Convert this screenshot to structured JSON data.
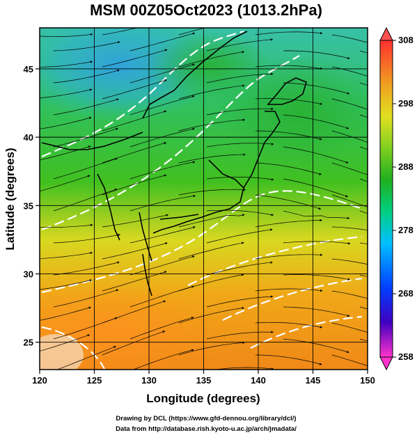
{
  "title": "MSM 00Z05Oct2023 (1013.2hPa)",
  "x_axis": {
    "label": "Longitude (degrees)",
    "ticks": [
      120,
      125,
      130,
      135,
      140,
      145,
      150
    ],
    "range": [
      120,
      150
    ]
  },
  "y_axis": {
    "label": "Latitude  (degrees)",
    "ticks": [
      25,
      30,
      35,
      40,
      45
    ],
    "range": [
      23,
      48
    ]
  },
  "colorbar": {
    "ticks": [
      308,
      298,
      288,
      278,
      268,
      258
    ],
    "range": [
      258,
      308
    ],
    "colors": [
      "#ff33cc",
      "#4000c0",
      "#0040ff",
      "#00c0ff",
      "#00d080",
      "#20b020",
      "#80d020",
      "#e0e020",
      "#f0a020",
      "#ff3030"
    ]
  },
  "credits": {
    "line1": "Drawing by DCL (https://www.gfd-dennou.org/library/dcl/)",
    "line2": "Data from http://database.rish.kyoto-u.ac.jp/arch/jmadata/"
  },
  "map_style": {
    "field": "temperature (K) shaded with streamlines",
    "grid": true,
    "coastline_color": "#000000",
    "contour_color": "#ffffff"
  }
}
